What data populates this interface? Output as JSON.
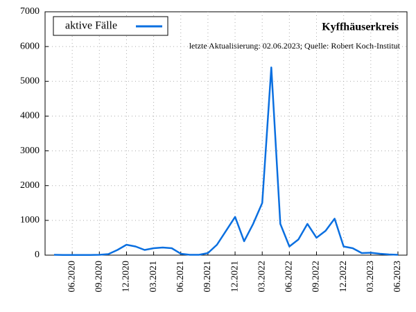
{
  "chart_data": {
    "type": "line",
    "title": "Kyffhäuserkreis",
    "subtitle": "letzte Aktualisierung: 02.06.2023; Quelle: Robert Koch-Institut",
    "x": [
      "2020-04",
      "2020-05",
      "2020-06",
      "2020-07",
      "2020-08",
      "2020-09",
      "2020-10",
      "2020-11",
      "2020-12",
      "2021-01",
      "2021-02",
      "2021-03",
      "2021-04",
      "2021-05",
      "2021-06",
      "2021-07",
      "2021-08",
      "2021-09",
      "2021-10",
      "2021-11",
      "2021-12",
      "2022-01",
      "2022-02",
      "2022-03",
      "2022-04",
      "2022-05",
      "2022-06",
      "2022-07",
      "2022-08",
      "2022-09",
      "2022-10",
      "2022-11",
      "2022-12",
      "2023-01",
      "2023-02",
      "2023-03",
      "2023-04",
      "2023-05",
      "2023-06"
    ],
    "series": [
      {
        "name": "aktive Fälle",
        "color": "#0a6fe0",
        "values": [
          10,
          5,
          5,
          5,
          5,
          10,
          30,
          150,
          300,
          250,
          150,
          200,
          220,
          200,
          40,
          10,
          10,
          60,
          300,
          700,
          1100,
          400,
          900,
          1500,
          5400,
          900,
          250,
          450,
          900,
          500,
          700,
          1050,
          250,
          200,
          60,
          70,
          40,
          20,
          10
        ]
      }
    ],
    "xlim": [
      "2020-03",
      "2023-07"
    ],
    "xticks": [
      {
        "value": "2020-06",
        "label": "06.2020"
      },
      {
        "value": "2020-09",
        "label": "09.2020"
      },
      {
        "value": "2020-12",
        "label": "12.2020"
      },
      {
        "value": "2021-03",
        "label": "03.2021"
      },
      {
        "value": "2021-06",
        "label": "06.2021"
      },
      {
        "value": "2021-09",
        "label": "09.2021"
      },
      {
        "value": "2021-12",
        "label": "12.2021"
      },
      {
        "value": "2022-03",
        "label": "03.2022"
      },
      {
        "value": "2022-06",
        "label": "06.2022"
      },
      {
        "value": "2022-09",
        "label": "09.2022"
      },
      {
        "value": "2022-12",
        "label": "12.2022"
      },
      {
        "value": "2023-03",
        "label": "03.2023"
      },
      {
        "value": "2023-06",
        "label": "06.2023"
      }
    ],
    "ylim": [
      0,
      7000
    ],
    "yticks": [
      0,
      1000,
      2000,
      3000,
      4000,
      5000,
      6000,
      7000
    ],
    "grid": true,
    "legend": "upper left"
  }
}
